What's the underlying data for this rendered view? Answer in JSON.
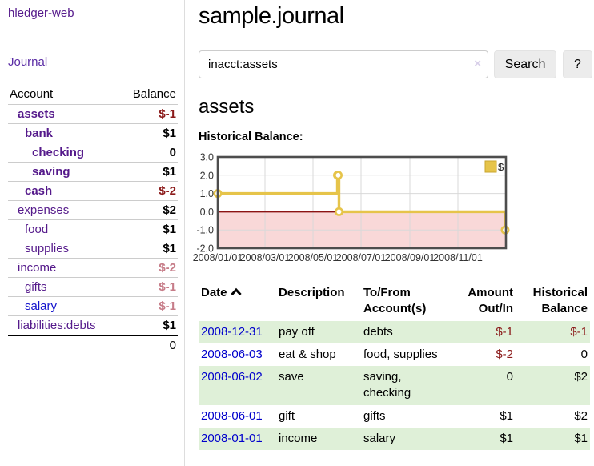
{
  "app": {
    "brand": "hledger-web",
    "nav_journal": "Journal"
  },
  "colors": {
    "purple_link": "#551A8B",
    "blue_link": "#0000CC",
    "negative": "#8B1A1A",
    "negative_muted": "#C67C88",
    "row_stripe_green": "#DFF0D8",
    "chart_gold": "#E6C44A",
    "chart_negative_fill": "#F9D8D8",
    "chart_zero_line": "#8B1414"
  },
  "sidebar": {
    "accounts_header": {
      "account": "Account",
      "balance": "Balance"
    },
    "accounts": [
      {
        "name": "assets",
        "indent": 1,
        "bold": true,
        "balance": "$-1",
        "style": "neg",
        "link": "purple"
      },
      {
        "name": "bank",
        "indent": 2,
        "bold": true,
        "balance": "$1",
        "style": "pos",
        "link": "purple"
      },
      {
        "name": "checking",
        "indent": 3,
        "bold": true,
        "balance": "0",
        "style": "pos",
        "link": "purple"
      },
      {
        "name": "saving",
        "indent": 3,
        "bold": true,
        "balance": "$1",
        "style": "pos",
        "link": "purple"
      },
      {
        "name": "cash",
        "indent": 2,
        "bold": true,
        "balance": "$-2",
        "style": "neg",
        "link": "purple"
      },
      {
        "name": "expenses",
        "indent": 1,
        "bold": false,
        "balance": "$2",
        "style": "pos",
        "link": "purple"
      },
      {
        "name": "food",
        "indent": 2,
        "bold": false,
        "balance": "$1",
        "style": "pos",
        "link": "purple"
      },
      {
        "name": "supplies",
        "indent": 2,
        "bold": false,
        "balance": "$1",
        "style": "pos",
        "link": "purple"
      },
      {
        "name": "income",
        "indent": 1,
        "bold": false,
        "balance": "$-2",
        "style": "negm",
        "link": "purple"
      },
      {
        "name": "gifts",
        "indent": 2,
        "bold": false,
        "balance": "$-1",
        "style": "negm",
        "link": "purple"
      },
      {
        "name": "salary",
        "indent": 2,
        "bold": false,
        "balance": "$-1",
        "style": "negm",
        "link": "blue"
      },
      {
        "name": "liabilities:debts",
        "indent": 1,
        "bold": false,
        "balance": "$1",
        "style": "pos",
        "link": "purple"
      }
    ],
    "total": "0"
  },
  "header": {
    "title": "sample.journal"
  },
  "search": {
    "value": "inacct:assets",
    "clear_icon": "×",
    "search_button": "Search",
    "help_button": "?"
  },
  "account_page": {
    "heading": "assets",
    "chart_label": "Historical Balance:"
  },
  "chart_data": {
    "type": "line",
    "step": true,
    "title": "Historical Balance:",
    "legend": "$",
    "xlim": [
      "2008-01-01",
      "2009-01-01"
    ],
    "ylim": [
      -2,
      3
    ],
    "yticks": [
      {
        "label": "3.0",
        "v": 3
      },
      {
        "label": "2.0",
        "v": 2
      },
      {
        "label": "1.0",
        "v": 1
      },
      {
        "label": "0.0",
        "v": 0
      },
      {
        "label": "-1.0",
        "v": -1
      },
      {
        "label": "-2.0",
        "v": -2
      }
    ],
    "xticks": [
      {
        "label": "2008/01/01",
        "d": "2008-01-01"
      },
      {
        "label": "2008/03/01",
        "d": "2008-03-01"
      },
      {
        "label": "2008/05/01",
        "d": "2008-05-01"
      },
      {
        "label": "2008/07/01",
        "d": "2008-07-01"
      },
      {
        "label": "2008/09/01",
        "d": "2008-09-01"
      },
      {
        "label": "2008/11/01",
        "d": "2008-11-01"
      }
    ],
    "ygrid": [
      2,
      1,
      -1
    ],
    "xgrid": [
      "2008-03-01",
      "2008-05-01",
      "2008-07-01",
      "2008-09-01",
      "2008-11-01"
    ],
    "zero_line": 0,
    "series": [
      {
        "name": "$",
        "points": [
          [
            "2008-01-01",
            1
          ],
          [
            "2008-06-01",
            2
          ],
          [
            "2008-06-02",
            2
          ],
          [
            "2008-06-03",
            0
          ],
          [
            "2008-12-31",
            -1
          ]
        ]
      }
    ]
  },
  "register": {
    "columns": [
      {
        "label": "Date",
        "align": "left",
        "sorted": true
      },
      {
        "label": "Description",
        "align": "left"
      },
      {
        "label": "To/From Account(s)",
        "align": "left"
      },
      {
        "label": "Amount Out/In",
        "align": "right"
      },
      {
        "label": "Historical Balance",
        "align": "right"
      }
    ],
    "rows": [
      {
        "date": "2008-12-31",
        "description": "pay off",
        "accounts": "debts",
        "amount": "$-1",
        "amount_style": "neg",
        "balance": "$-1",
        "balance_style": "neg",
        "stripe": true
      },
      {
        "date": "2008-06-03",
        "description": "eat & shop",
        "accounts": "food, supplies",
        "amount": "$-2",
        "amount_style": "neg",
        "balance": "0",
        "balance_style": "pos",
        "stripe": false
      },
      {
        "date": "2008-06-02",
        "description": "save",
        "accounts": "saving, checking",
        "amount": "0",
        "amount_style": "pos",
        "balance": "$2",
        "balance_style": "pos",
        "stripe": true
      },
      {
        "date": "2008-06-01",
        "description": "gift",
        "accounts": "gifts",
        "amount": "$1",
        "amount_style": "pos",
        "balance": "$2",
        "balance_style": "pos",
        "stripe": false
      },
      {
        "date": "2008-01-01",
        "description": "income",
        "accounts": "salary",
        "amount": "$1",
        "amount_style": "pos",
        "balance": "$1",
        "balance_style": "pos",
        "stripe": true
      }
    ]
  }
}
